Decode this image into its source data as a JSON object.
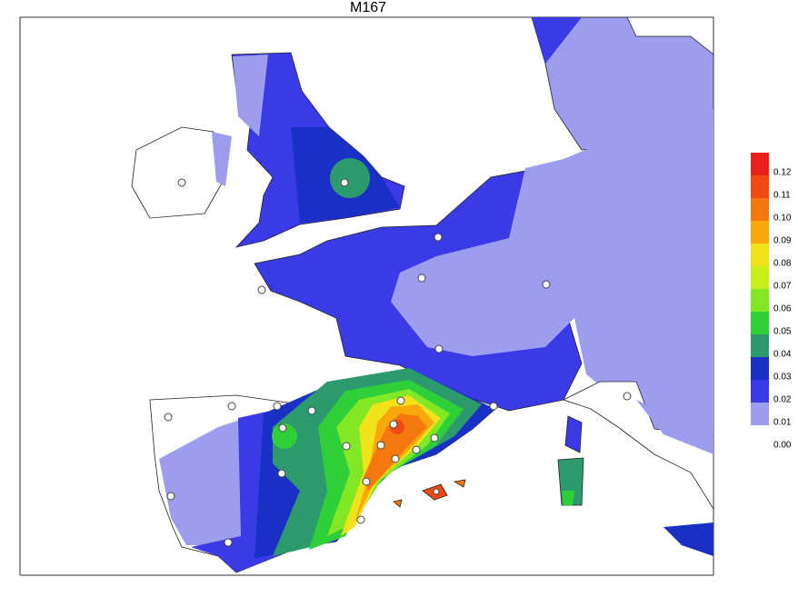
{
  "title": "M167",
  "legend": {
    "labels": [
      "0.12",
      "0.11",
      "0.10",
      "0.09",
      "0.08",
      "0.07",
      "0.06",
      "0.05",
      "0.04",
      "0.03",
      "0.02",
      "0.01",
      "0.00"
    ],
    "colors": [
      "#e8221a",
      "#f04a12",
      "#f5780e",
      "#f9a80c",
      "#f2e21a",
      "#c6ef1c",
      "#82e826",
      "#2fcf3a",
      "#2c9a6c",
      "#1a2fc4",
      "#3a3ae6",
      "#9d9df0"
    ]
  }
}
